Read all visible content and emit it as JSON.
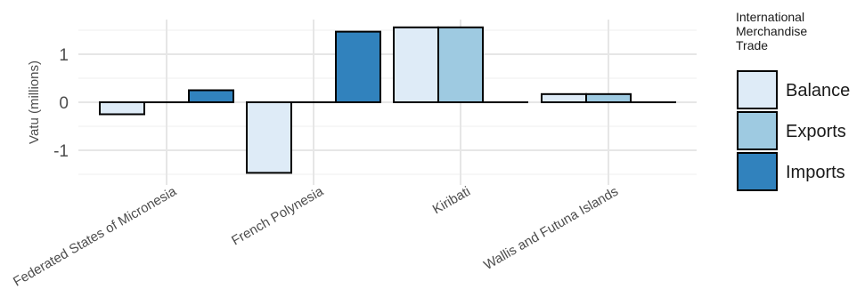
{
  "chart_data": {
    "type": "bar",
    "ylabel": "Vatu (millions)",
    "xlabel": "",
    "ylim": [
      -1.65,
      1.65
    ],
    "yticks": [
      -1,
      0,
      1
    ],
    "ytick_labels": [
      "-1",
      "0",
      "1"
    ],
    "grid": true,
    "legend": {
      "title": "International Merchandise Trade",
      "title_lines": [
        "International",
        "Merchandise",
        "Trade"
      ],
      "position": "right"
    },
    "categories": [
      "Federated States of Micronesia",
      "French Polynesia",
      "Kiribati",
      "Wallis and Futuna Islands"
    ],
    "series": [
      {
        "name": "Balance",
        "color": "#deebf7",
        "values": [
          -0.25,
          -1.47,
          1.56,
          0.17
        ]
      },
      {
        "name": "Exports",
        "color": "#9ecae1",
        "values": [
          0.0,
          0.0,
          1.56,
          0.17
        ]
      },
      {
        "name": "Imports",
        "color": "#3182bd",
        "values": [
          0.25,
          1.47,
          0.0,
          0.0
        ]
      }
    ]
  }
}
